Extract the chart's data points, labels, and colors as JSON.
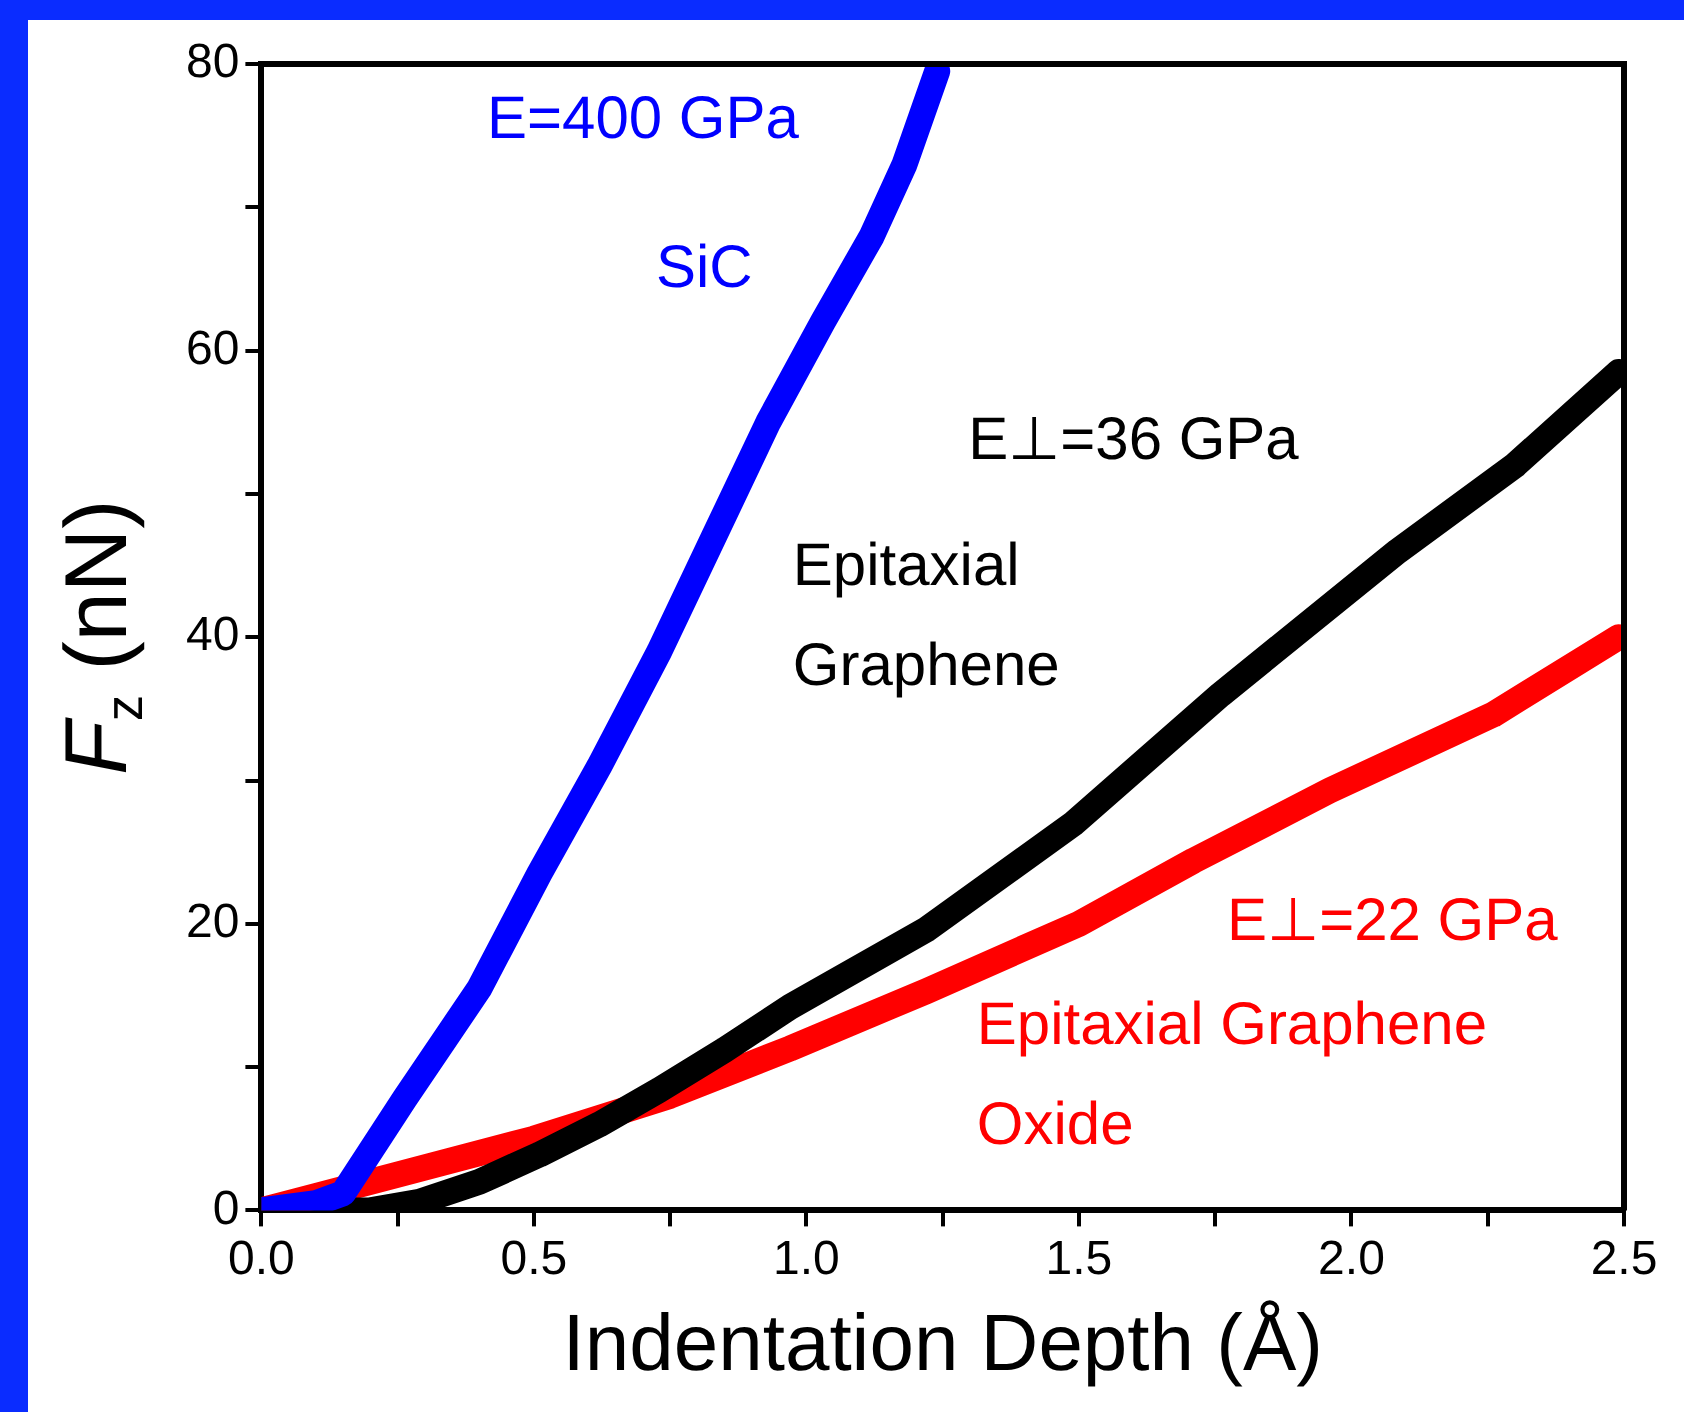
{
  "chart_data": {
    "type": "line",
    "xlabel": "Indentation Depth (Å)",
    "ylabel": "F$_{z}$ (nN)",
    "xlim": [
      0,
      2.5
    ],
    "xticks": [
      {
        "value": 0,
        "label": "0.0"
      },
      {
        "value": 0.25,
        "label": null
      },
      {
        "value": 0.5,
        "label": "0.5"
      },
      {
        "value": 0.75,
        "label": null
      },
      {
        "value": 1,
        "label": "1.0"
      },
      {
        "value": 1.25,
        "label": null
      },
      {
        "value": 1.5,
        "label": "1.5"
      },
      {
        "value": 1.75,
        "label": null
      },
      {
        "value": 2,
        "label": "2.0"
      },
      {
        "value": 2.25,
        "label": null
      },
      {
        "value": 2.5,
        "label": "2.5"
      }
    ],
    "ylim": [
      0,
      80
    ],
    "yticks": [
      0,
      {
        "value": 10,
        "label": null
      },
      20,
      {
        "value": 30,
        "label": null
      },
      40,
      {
        "value": 50,
        "label": null
      },
      60,
      {
        "value": 70,
        "label": null
      },
      80
    ],
    "grid": false,
    "legend": false,
    "marker": "none",
    "line_style": "solid",
    "series": [
      {
        "color": "#0000ff",
        "x": [
          0,
          0.1,
          0.15,
          0.263,
          0.4,
          0.51,
          0.62,
          0.73,
          0.83,
          0.93,
          1.03,
          1.12,
          1.18,
          1.24
        ],
        "values": [
          0,
          0.5,
          1.2,
          7.8,
          15.5,
          23.5,
          31,
          39,
          47,
          55,
          62,
          68,
          73,
          79.5
        ]
      },
      {
        "color": "#000000",
        "x": [
          0,
          0.2,
          0.29,
          0.4,
          0.51,
          0.62,
          0.73,
          0.85,
          0.97,
          1.22,
          1.49,
          1.76,
          2.085,
          2.3,
          2.49
        ],
        "values": [
          0,
          0,
          0.6,
          2,
          3.9,
          6,
          8.4,
          11.2,
          14.2,
          19.6,
          27,
          36,
          46,
          52,
          58.5
        ]
      },
      {
        "color": "#ff0000",
        "x": [
          0,
          0.1,
          0.25,
          0.5,
          0.75,
          0.97,
          1.22,
          1.5,
          1.71,
          1.96,
          2.26,
          2.49
        ],
        "values": [
          0,
          1,
          2.5,
          5,
          8,
          11.3,
          15.3,
          20,
          24.4,
          29.3,
          34.6,
          40
        ]
      }
    ],
    "annotations": [
      "E=400 GPa",
      "SiC",
      "E⊥=36 GPa",
      "Epitaxial Graphene",
      "E⊥=22 GPa",
      "Epitaxial Graphene Oxide"
    ]
  }
}
